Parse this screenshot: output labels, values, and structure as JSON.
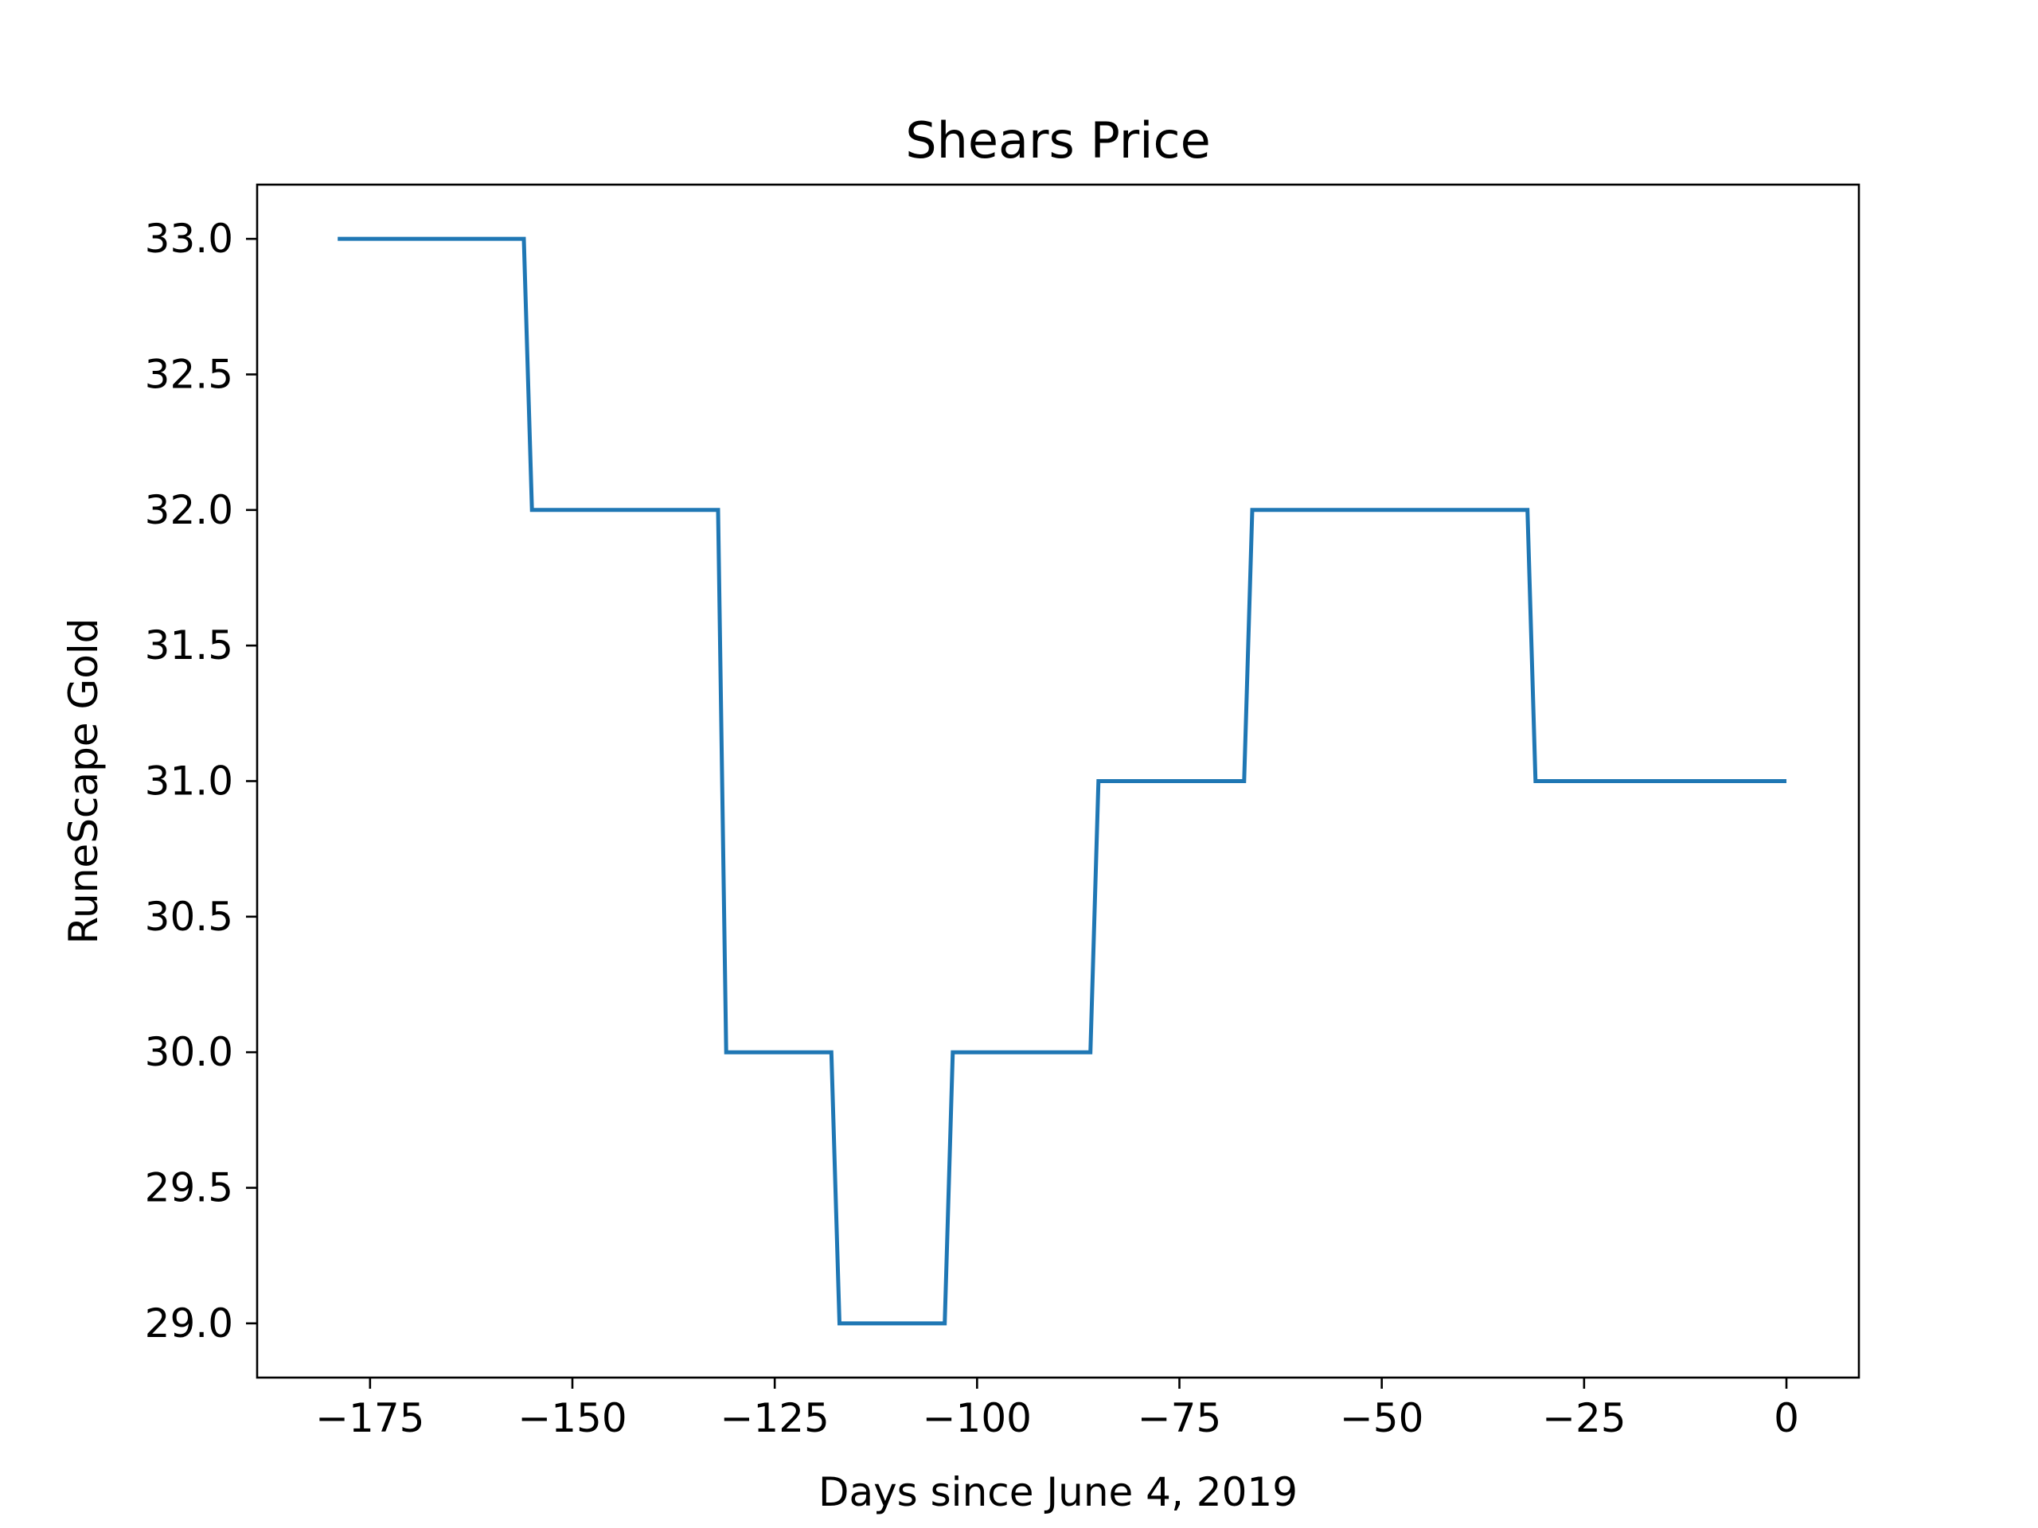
{
  "chart_data": {
    "type": "line",
    "title": "Shears Price",
    "xlabel": "Days since June 4, 2019",
    "ylabel": "RuneScape Gold",
    "xlim": [
      -188.95,
      8.95
    ],
    "ylim": [
      28.8,
      33.2
    ],
    "x_ticks": [
      -175,
      -150,
      -125,
      -100,
      -75,
      -50,
      -25,
      0
    ],
    "x_tick_labels": [
      "−175",
      "−150",
      "−125",
      "−100",
      "−75",
      "−50",
      "−25",
      "0"
    ],
    "y_ticks": [
      29.0,
      29.5,
      30.0,
      30.5,
      31.0,
      31.5,
      32.0,
      32.5,
      33.0
    ],
    "y_tick_labels": [
      "29.0",
      "29.5",
      "30.0",
      "30.5",
      "31.0",
      "31.5",
      "32.0",
      "32.5",
      "33.0"
    ],
    "grid": false,
    "legend": "none",
    "series": [
      {
        "color": "#1f77b4",
        "points": [
          [
            -179,
            33
          ],
          [
            -156,
            33
          ],
          [
            -155,
            32
          ],
          [
            -132,
            32
          ],
          [
            -131,
            30
          ],
          [
            -118,
            30
          ],
          [
            -117,
            29
          ],
          [
            -104,
            29
          ],
          [
            -103,
            30
          ],
          [
            -86,
            30
          ],
          [
            -85,
            31
          ],
          [
            -67,
            31
          ],
          [
            -66,
            32
          ],
          [
            -32,
            32
          ],
          [
            -31,
            31
          ],
          [
            0,
            31
          ]
        ]
      }
    ]
  }
}
